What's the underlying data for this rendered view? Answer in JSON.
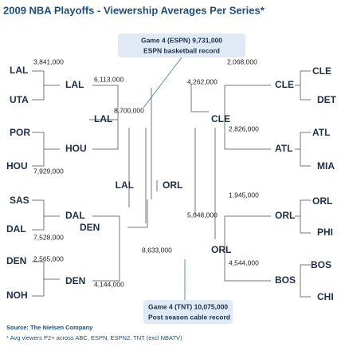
{
  "title": "2009 NBA Playoffs - Viewership Averages Per Series*",
  "callouts": [
    {
      "line1": "Game 4 (ESPN) 9,731,000",
      "line2": "ESPN basketball record"
    },
    {
      "line1": "Game 4 (TNT) 10,075,000",
      "line2": "Post season cable record"
    }
  ],
  "teams": [
    "LAL",
    "UTA",
    "LAL",
    "POR",
    "HOU",
    "HOU",
    "LAL",
    "SAS",
    "DAL",
    "DAL",
    "DEN",
    "DEN",
    "DEN",
    "NOH",
    "CLE",
    "DET",
    "CLE",
    "CLE",
    "ATL",
    "ATL",
    "MIA",
    "ORL",
    "ORL",
    "PHI",
    "ORL",
    "BOS",
    "BOS",
    "CHI"
  ],
  "viewers": [
    "3,841,000",
    "6,113,000",
    "8,700,000",
    "7,929,000",
    "7,528,000",
    "2,565,000",
    "4,144,000",
    "8,633,000",
    "2,068,000",
    "4,262,000",
    "2,826,000",
    "1,945,000",
    "5,048,000",
    "4,544,000"
  ],
  "finals": {
    "left": "LAL",
    "right": "ORL"
  },
  "footer": {
    "source": "Source: The Nielsen Company",
    "note": "* Avg viewers P2+ across ABC, ESPN, ESPN2, TNT (excl NBATV)"
  }
}
